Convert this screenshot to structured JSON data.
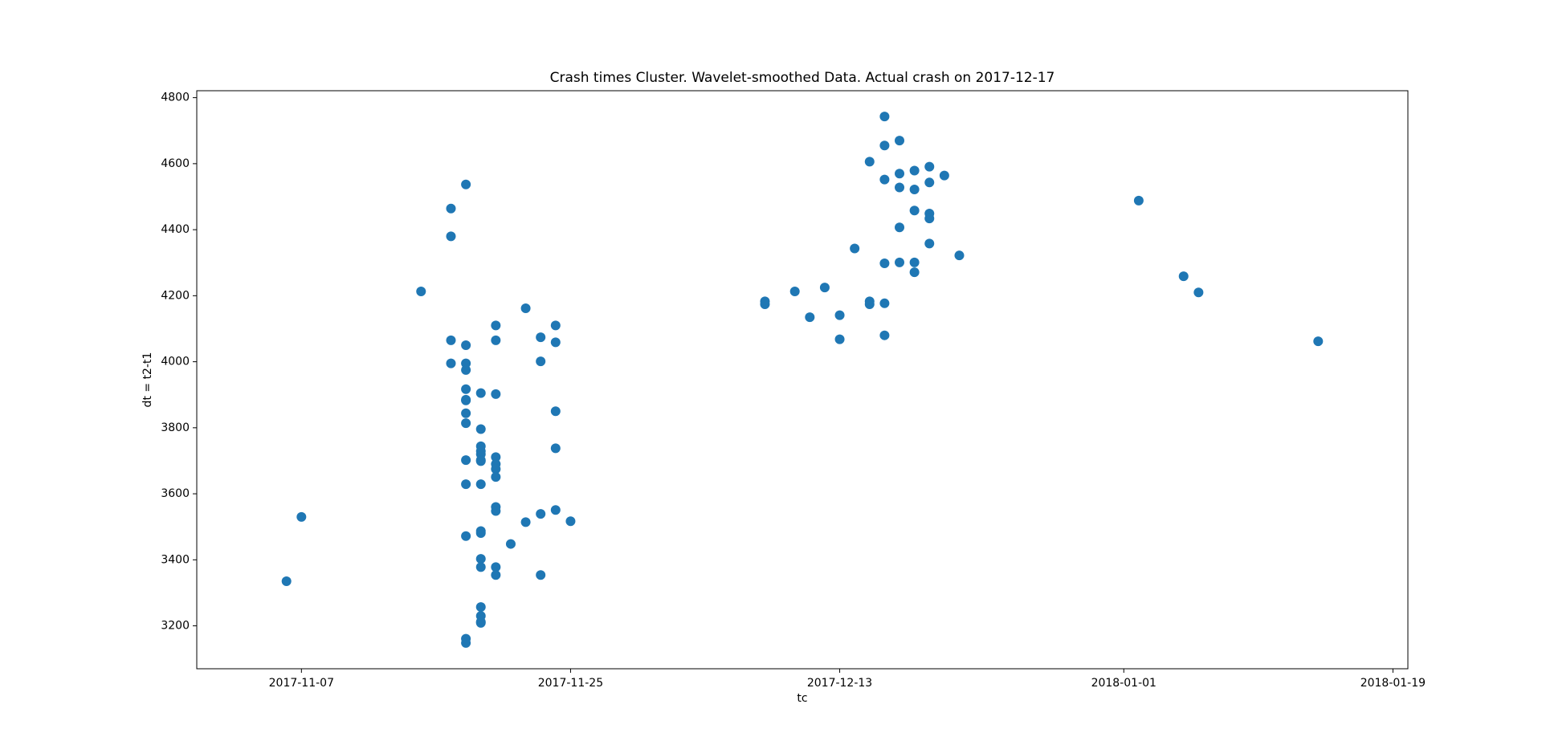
{
  "chart_data": {
    "type": "scatter",
    "title": "Crash times Cluster. Wavelet-smoothed Data. Actual crash on 2017-12-17",
    "x_label": "tc",
    "y_label": "dt = t2-t1",
    "series": [
      {
        "color": "#1f77b4",
        "x": [
          "2017-11-06",
          "2017-11-07",
          "2017-11-15",
          "2017-11-17",
          "2017-11-17",
          "2017-11-18",
          "2017-11-17",
          "2017-11-18",
          "2017-11-17",
          "2017-11-18",
          "2017-11-18",
          "2017-11-18",
          "2017-11-19",
          "2017-11-18",
          "2017-11-18",
          "2017-11-20",
          "2017-11-18",
          "2017-11-18",
          "2017-11-19",
          "2017-11-19",
          "2017-11-19",
          "2017-11-19",
          "2017-11-20",
          "2017-11-18",
          "2017-11-19",
          "2017-11-19",
          "2017-11-20",
          "2017-11-20",
          "2017-11-20",
          "2017-11-18",
          "2017-11-19",
          "2017-11-20",
          "2017-11-20",
          "2017-11-18",
          "2017-11-19",
          "2017-11-19",
          "2017-11-19",
          "2017-11-19",
          "2017-11-20",
          "2017-11-20",
          "2017-11-19",
          "2017-11-19",
          "2017-11-19",
          "2017-11-19",
          "2017-11-18",
          "2017-11-18",
          "2017-11-20",
          "2017-11-20",
          "2017-11-22",
          "2017-11-23",
          "2017-11-23",
          "2017-11-24",
          "2017-11-24",
          "2017-11-24",
          "2017-11-24",
          "2017-11-24",
          "2017-11-25",
          "2017-11-23",
          "2017-11-22",
          "2017-11-21",
          "2017-11-23",
          "2017-12-08",
          "2017-12-08",
          "2017-12-10",
          "2017-12-11",
          "2017-12-12",
          "2017-12-13",
          "2017-12-13",
          "2017-12-14",
          "2017-12-15",
          "2017-12-15",
          "2017-12-16",
          "2017-12-16",
          "2017-12-16",
          "2017-12-16",
          "2017-12-15",
          "2017-12-16",
          "2017-12-17",
          "2017-12-17",
          "2017-12-17",
          "2017-12-18",
          "2017-12-18",
          "2017-12-19",
          "2017-12-19",
          "2017-12-20",
          "2017-12-18",
          "2017-12-19",
          "2017-12-19",
          "2017-12-17",
          "2017-12-19",
          "2017-12-16",
          "2017-12-17",
          "2017-12-18",
          "2017-12-18",
          "2017-12-21",
          "2018-01-02",
          "2018-01-05",
          "2018-01-06",
          "2018-01-14"
        ],
        "values": [
          3335,
          3530,
          4213,
          4464,
          4380,
          4537,
          4065,
          4050,
          3995,
          3995,
          3975,
          3917,
          3905,
          3883,
          3885,
          3902,
          3844,
          3814,
          3796,
          3744,
          3729,
          3720,
          3711,
          3702,
          3702,
          3699,
          3690,
          3675,
          3651,
          3629,
          3629,
          3560,
          3548,
          3472,
          3481,
          3487,
          3403,
          3378,
          3378,
          3354,
          3257,
          3230,
          3209,
          3212,
          3161,
          3148,
          4110,
          4065,
          4162,
          4074,
          4001,
          4110,
          4059,
          3850,
          3738,
          3551,
          3517,
          3539,
          3514,
          3448,
          3354,
          4174,
          4183,
          4213,
          4135,
          4225,
          4141,
          4068,
          4343,
          4183,
          4174,
          4177,
          4080,
          4743,
          4655,
          4606,
          4552,
          4528,
          4670,
          4570,
          4522,
          4579,
          4591,
          4543,
          4564,
          4458,
          4449,
          4434,
          4407,
          4358,
          4298,
          4301,
          4301,
          4271,
          4322,
          4488,
          4259,
          4210,
          4062
        ]
      }
    ],
    "xlim": [
      "2017-10-31",
      "2018-01-20"
    ],
    "xticks": [
      "2017-11-07",
      "2017-11-25",
      "2017-12-13",
      "2018-01-01",
      "2018-01-19"
    ],
    "ylim": [
      3070,
      4821
    ],
    "yticks": [
      3200,
      3400,
      3600,
      3800,
      4000,
      4200,
      4400,
      4600,
      4800
    ],
    "grid": false
  }
}
